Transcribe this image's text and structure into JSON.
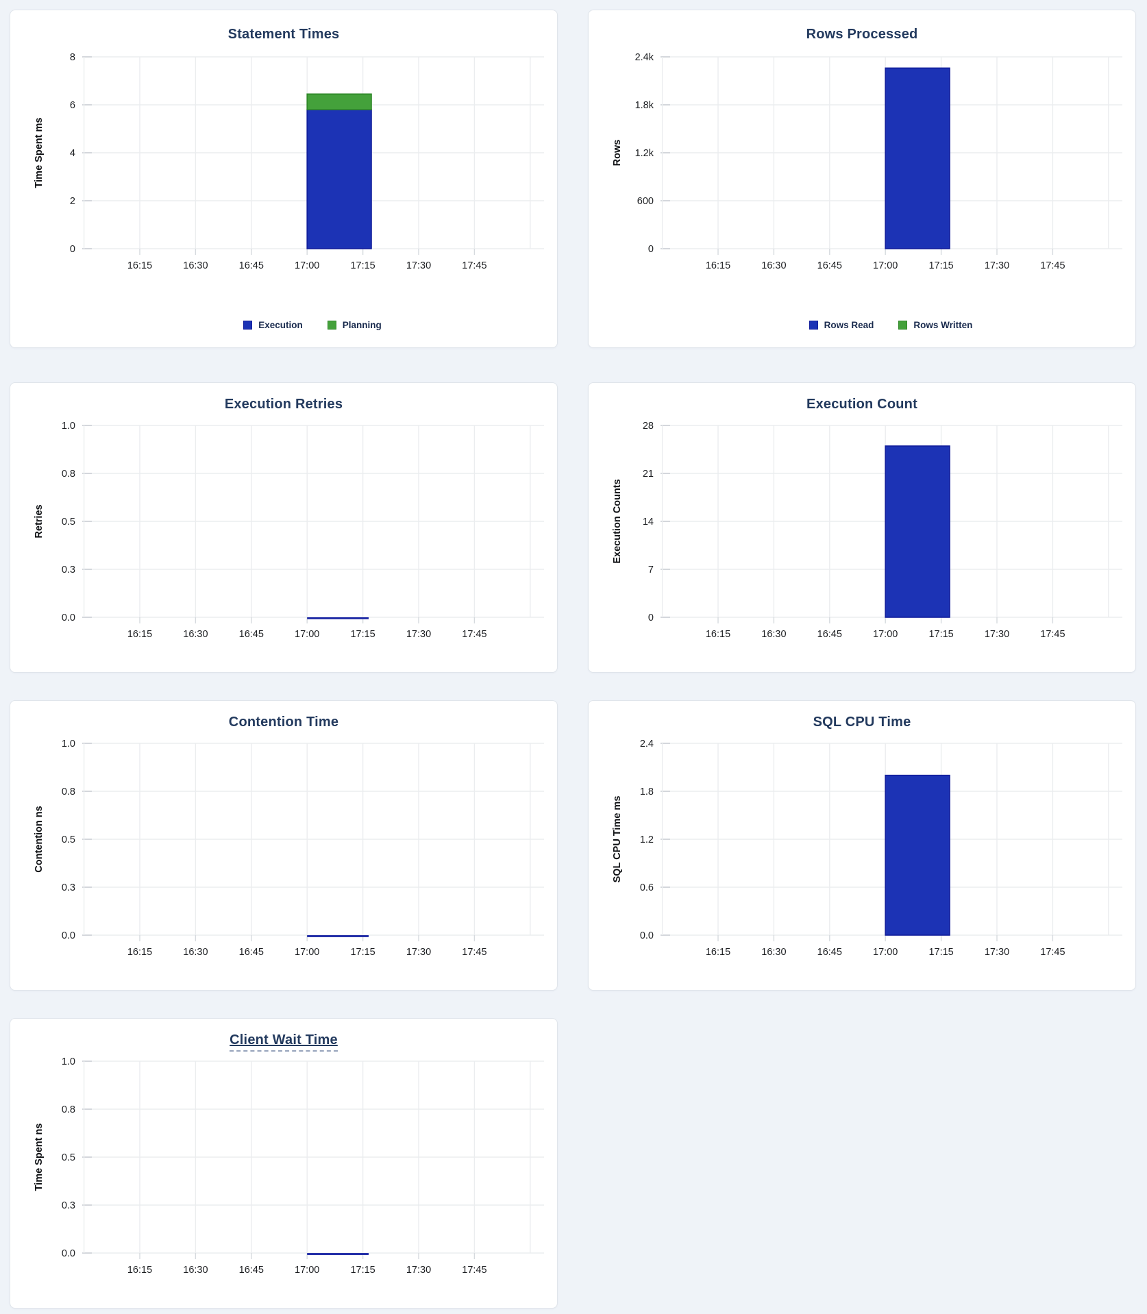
{
  "page": {
    "background_color": "#eff3f8",
    "card_background": "#ffffff",
    "card_border_color": "#e0e5eb"
  },
  "colors": {
    "blue_fill": "#1c33b5",
    "blue_stroke": "#131f9c",
    "green_fill": "#44a13b",
    "green_stroke": "#2f8728",
    "zero_line": "#2530a8",
    "title_text": "#233a5e",
    "tick_text": "#1c1e21",
    "gridline": "#ebedef",
    "gridline_stub": "#c9cdd3",
    "legend_text": "#192a4d"
  },
  "xticks": [
    "16:15",
    "16:30",
    "16:45",
    "17:00",
    "17:15",
    "17:30",
    "17:45"
  ],
  "chart_data": [
    {
      "type": "bar",
      "title": "Statement Times",
      "title_has_tooltip_underline": false,
      "ylabel": "Time Spent ms",
      "ylim": [
        0,
        8
      ],
      "ytick_labels": [
        "0",
        "2",
        "4",
        "6",
        "8"
      ],
      "xtick_labels": [
        "16:15",
        "16:30",
        "16:45",
        "17:00",
        "17:15",
        "17:30",
        "17:45"
      ],
      "xlim_approx": [
        "16:00",
        "18:00"
      ],
      "grid": true,
      "stacked": true,
      "bar_window": {
        "start": "17:00",
        "end": "17:17"
      },
      "series": [
        {
          "name": "Execution",
          "color_key": "blue",
          "value": 5.8
        },
        {
          "name": "Planning",
          "color_key": "green",
          "value": 0.65
        }
      ],
      "zero_line": false,
      "legend_position": "bottom",
      "legend": [
        {
          "label": "Execution",
          "color_key": "blue"
        },
        {
          "label": "Planning",
          "color_key": "green"
        }
      ]
    },
    {
      "type": "bar",
      "title": "Rows Processed",
      "title_has_tooltip_underline": false,
      "ylabel": "Rows",
      "ylim": [
        0,
        2400
      ],
      "ytick_labels": [
        "0",
        "600",
        "1.2k",
        "1.8k",
        "2.4k"
      ],
      "xtick_labels": [
        "16:15",
        "16:30",
        "16:45",
        "17:00",
        "17:15",
        "17:30",
        "17:45"
      ],
      "xlim_approx": [
        "16:00",
        "18:00"
      ],
      "grid": true,
      "stacked": true,
      "bar_window": {
        "start": "17:00",
        "end": "17:17"
      },
      "series": [
        {
          "name": "Rows Read",
          "color_key": "blue",
          "value": 2260
        },
        {
          "name": "Rows Written",
          "color_key": "green",
          "value": 0
        }
      ],
      "zero_line": false,
      "legend_position": "bottom",
      "legend": [
        {
          "label": "Rows Read",
          "color_key": "blue"
        },
        {
          "label": "Rows Written",
          "color_key": "green"
        }
      ]
    },
    {
      "type": "bar",
      "title": "Execution Retries",
      "title_has_tooltip_underline": false,
      "ylabel": "Retries",
      "ylim": [
        0,
        1
      ],
      "ytick_labels": [
        "0.0",
        "0.3",
        "0.5",
        "0.8",
        "1.0"
      ],
      "xtick_labels": [
        "16:15",
        "16:30",
        "16:45",
        "17:00",
        "17:15",
        "17:30",
        "17:45"
      ],
      "xlim_approx": [
        "16:00",
        "18:00"
      ],
      "grid": true,
      "stacked": false,
      "bar_window": {
        "start": "17:00",
        "end": "17:17"
      },
      "series": [
        {
          "name": "Retries",
          "color_key": "blue",
          "value": 0
        }
      ],
      "zero_line": true,
      "legend_position": "none",
      "legend": []
    },
    {
      "type": "bar",
      "title": "Execution Count",
      "title_has_tooltip_underline": false,
      "ylabel": "Execution Counts",
      "ylim": [
        0,
        28
      ],
      "ytick_labels": [
        "0",
        "7",
        "14",
        "21",
        "28"
      ],
      "xtick_labels": [
        "16:15",
        "16:30",
        "16:45",
        "17:00",
        "17:15",
        "17:30",
        "17:45"
      ],
      "xlim_approx": [
        "16:00",
        "18:00"
      ],
      "grid": true,
      "stacked": false,
      "bar_window": {
        "start": "17:00",
        "end": "17:17"
      },
      "series": [
        {
          "name": "Execution Count",
          "color_key": "blue",
          "value": 25
        }
      ],
      "zero_line": false,
      "legend_position": "none",
      "legend": []
    },
    {
      "type": "bar",
      "title": "Contention Time",
      "title_has_tooltip_underline": false,
      "ylabel": "Contention ns",
      "ylim": [
        0,
        1
      ],
      "ytick_labels": [
        "0.0",
        "0.3",
        "0.5",
        "0.8",
        "1.0"
      ],
      "xtick_labels": [
        "16:15",
        "16:30",
        "16:45",
        "17:00",
        "17:15",
        "17:30",
        "17:45"
      ],
      "xlim_approx": [
        "16:00",
        "18:00"
      ],
      "grid": true,
      "stacked": false,
      "bar_window": {
        "start": "17:00",
        "end": "17:17"
      },
      "series": [
        {
          "name": "Contention",
          "color_key": "blue",
          "value": 0
        }
      ],
      "zero_line": true,
      "legend_position": "none",
      "legend": []
    },
    {
      "type": "bar",
      "title": "SQL CPU Time",
      "title_has_tooltip_underline": false,
      "ylabel": "SQL CPU Time ms",
      "ylim": [
        0,
        2.4
      ],
      "ytick_labels": [
        "0.0",
        "0.6",
        "1.2",
        "1.8",
        "2.4"
      ],
      "xtick_labels": [
        "16:15",
        "16:30",
        "16:45",
        "17:00",
        "17:15",
        "17:30",
        "17:45"
      ],
      "xlim_approx": [
        "16:00",
        "18:00"
      ],
      "grid": true,
      "stacked": false,
      "bar_window": {
        "start": "17:00",
        "end": "17:17"
      },
      "series": [
        {
          "name": "SQL CPU Time",
          "color_key": "blue",
          "value": 2.0
        }
      ],
      "zero_line": false,
      "legend_position": "none",
      "legend": []
    },
    {
      "type": "bar",
      "title": "Client Wait Time",
      "title_has_tooltip_underline": true,
      "ylabel": "Time Spent ns",
      "ylim": [
        0,
        1
      ],
      "ytick_labels": [
        "0.0",
        "0.3",
        "0.5",
        "0.8",
        "1.0"
      ],
      "xtick_labels": [
        "16:15",
        "16:30",
        "16:45",
        "17:00",
        "17:15",
        "17:30",
        "17:45"
      ],
      "xlim_approx": [
        "16:00",
        "18:00"
      ],
      "grid": true,
      "stacked": false,
      "bar_window": {
        "start": "17:00",
        "end": "17:17"
      },
      "series": [
        {
          "name": "Client Wait Time",
          "color_key": "blue",
          "value": 0
        }
      ],
      "zero_line": true,
      "legend_position": "none",
      "legend": []
    }
  ]
}
